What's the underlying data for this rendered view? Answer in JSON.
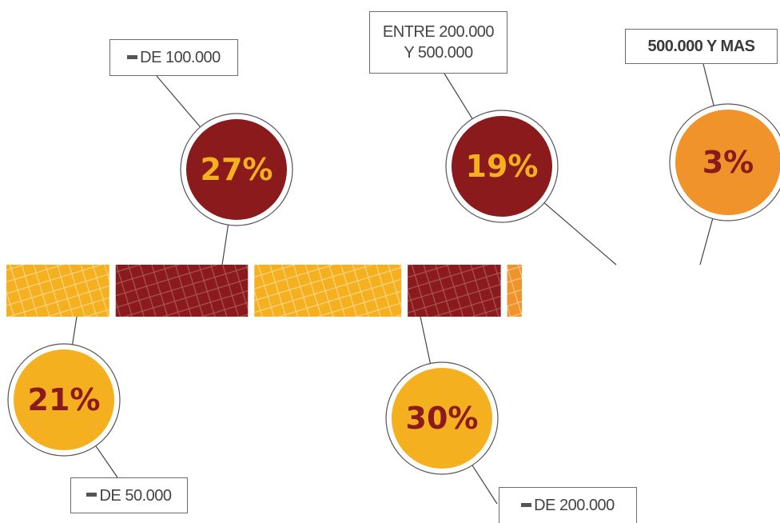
{
  "chart_data": {
    "type": "bar",
    "orientation": "horizontal-segmented",
    "unit": "%",
    "segments": [
      {
        "label_prefix": "",
        "label": "DE 50.000",
        "value": 21,
        "value_text": "21%",
        "color": "#f4b01f",
        "text_color": "#8b1a1c"
      },
      {
        "label_prefix": "",
        "label": "DE 100.000",
        "value": 27,
        "value_text": "27%",
        "color": "#8b1a1c",
        "text_color": "#f4b01f"
      },
      {
        "label_prefix": "",
        "label": "DE 200.000",
        "value": 30,
        "value_text": "30%",
        "color": "#f4b01f",
        "text_color": "#8b1a1c"
      },
      {
        "label_prefix": "",
        "label": "ENTRE 200.000\nY 500.000",
        "value": 19,
        "value_text": "19%",
        "color": "#8b1a1c",
        "text_color": "#f4b01f"
      },
      {
        "label_prefix": "",
        "label": "500.000 Y MAS",
        "value": 3,
        "value_text": "3%",
        "color": "#f0932a",
        "text_color": "#8b1a1c"
      }
    ]
  }
}
